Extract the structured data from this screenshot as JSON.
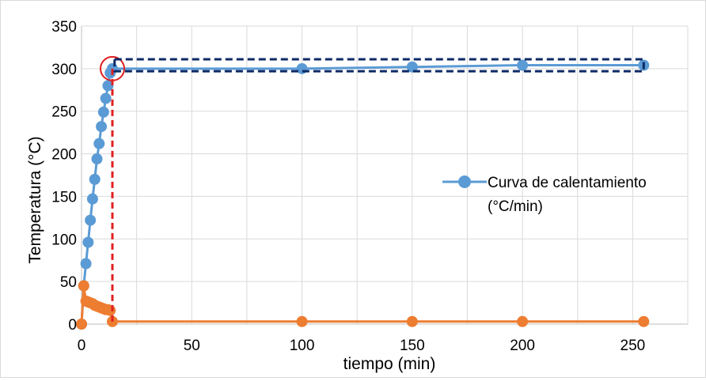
{
  "chart_data": {
    "type": "scatter",
    "title": "",
    "xlabel": "tiempo (min)",
    "ylabel": "Temperatura (°C)",
    "xlim": [
      0,
      275
    ],
    "ylim": [
      0,
      350
    ],
    "x_ticks": [
      0,
      50,
      100,
      150,
      200,
      250
    ],
    "y_ticks": [
      0,
      50,
      100,
      150,
      200,
      250,
      300,
      350
    ],
    "grid": true,
    "legend_position": "right",
    "series": [
      {
        "name": "Curva de calentamiento (°C/min)",
        "color": "#5b9bd5",
        "x": [
          0,
          1,
          2,
          3,
          4,
          5,
          6,
          7,
          8,
          9,
          10,
          11,
          12,
          13,
          14,
          100,
          150,
          200,
          255
        ],
        "y": [
          0,
          45,
          71,
          96,
          122,
          147,
          170,
          194,
          212,
          232,
          249,
          265,
          280,
          295,
          300,
          300,
          302,
          304,
          304
        ]
      },
      {
        "name": "",
        "color": "#ed7d31",
        "x": [
          0,
          1,
          2,
          3,
          4,
          5,
          6,
          7,
          8,
          9,
          10,
          11,
          12,
          13,
          14,
          100,
          150,
          200,
          255
        ],
        "y": [
          0,
          45,
          27,
          26,
          25,
          24,
          22,
          21,
          20,
          19,
          18,
          17,
          17,
          16,
          3,
          3,
          3,
          3,
          3
        ]
      }
    ],
    "annotations": [
      {
        "type": "dashed-vertical-line",
        "color": "#e02020",
        "x": 14,
        "y_from": 300,
        "y_to": 0
      },
      {
        "type": "circle",
        "color": "#e02020",
        "x": 14,
        "y": 300
      },
      {
        "type": "dashed-rectangle",
        "color": "#0d2a66",
        "x_from": 15,
        "x_to": 255,
        "y_from": 297,
        "y_to": 311
      }
    ]
  }
}
